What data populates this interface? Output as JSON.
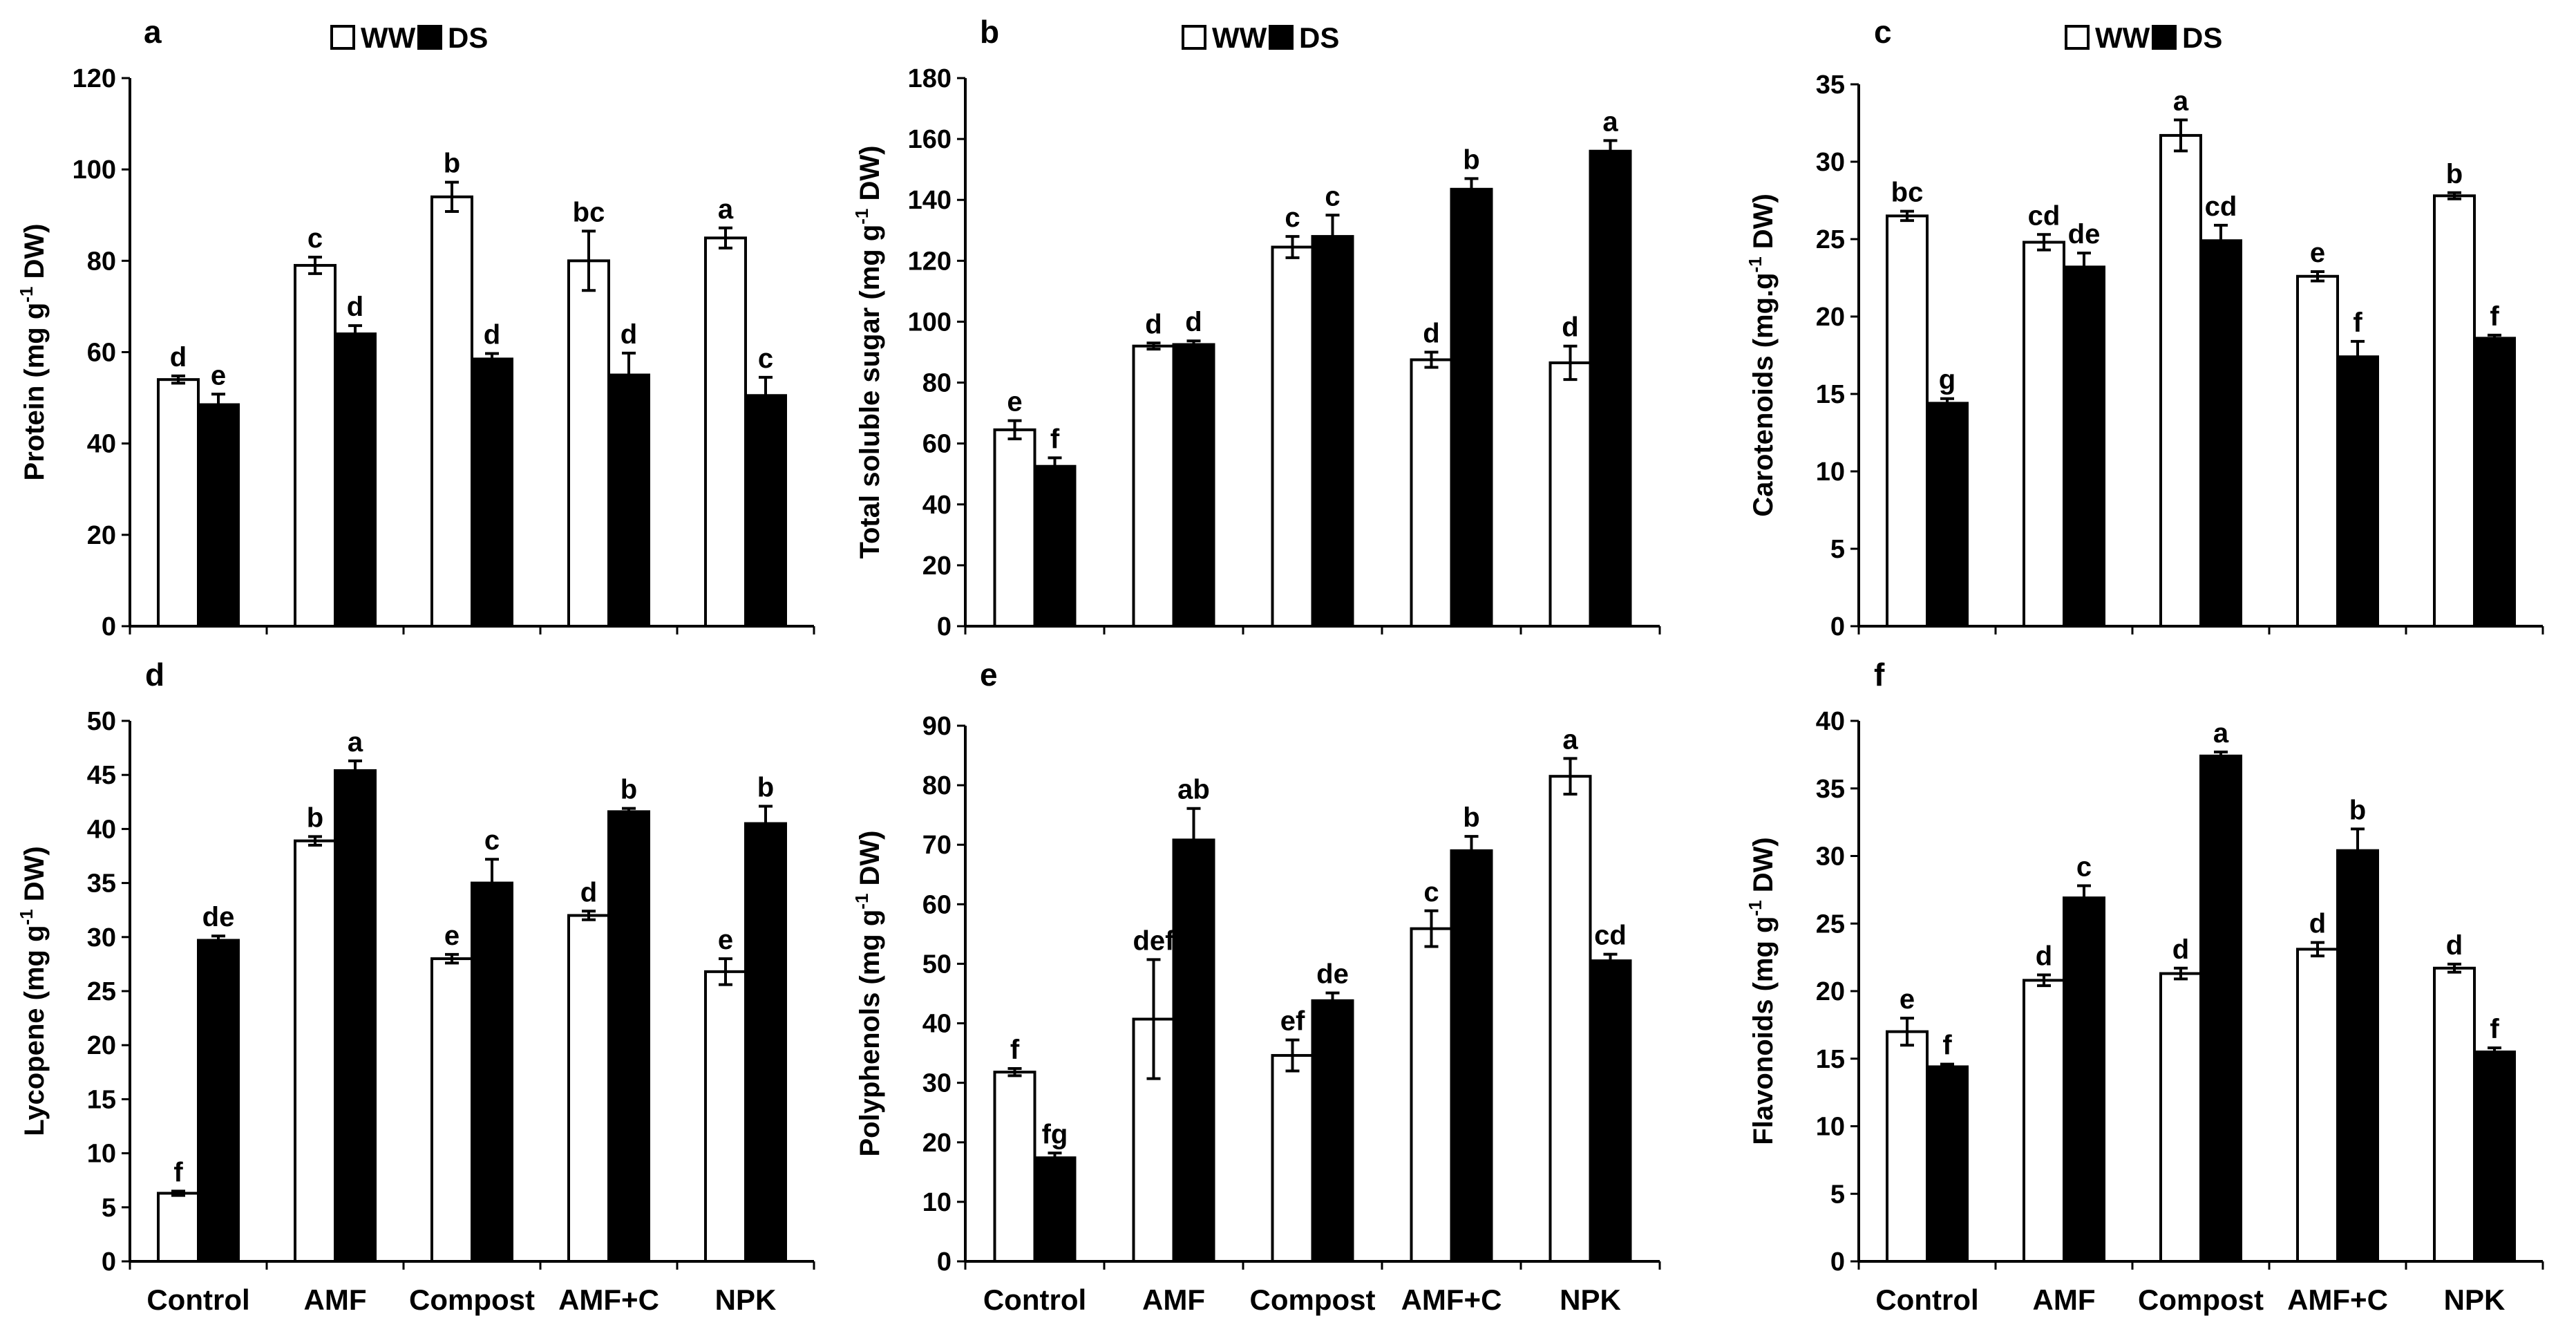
{
  "figure": {
    "layout": "2 rows x 3 columns of grouped bar charts"
  },
  "chart_data": [
    {
      "panel": "a",
      "type": "bar",
      "categories": [
        "Control",
        "AMF",
        "Compost",
        "AMF+C",
        "NPK"
      ],
      "legend": [
        "WW",
        "DS"
      ],
      "ylabel": {
        "main": "Protein (mg g",
        "sup": "-1",
        "tail": " DW)"
      },
      "ylim": [
        0,
        120
      ],
      "ytick_step": 20,
      "series": [
        {
          "name": "WW",
          "color": "#ffffff",
          "values": [
            54,
            79,
            94,
            80,
            85
          ],
          "errors": [
            0.8,
            1.8,
            3.2,
            6.5,
            2.2
          ],
          "letters": [
            "d",
            "c",
            "b",
            "bc",
            "a"
          ]
        },
        {
          "name": "DS",
          "color": "#000000",
          "values": [
            48.5,
            64,
            58.5,
            55,
            50.5
          ],
          "errors": [
            2.3,
            1.8,
            1.2,
            4.8,
            4.0
          ],
          "letters": [
            "e",
            "d",
            "d",
            "d",
            "c"
          ]
        }
      ],
      "x_labels_shown": false
    },
    {
      "panel": "b",
      "type": "bar",
      "categories": [
        "Control",
        "AMF",
        "Compost",
        "AMF+C",
        "NPK"
      ],
      "legend": [
        "WW",
        "DS"
      ],
      "ylabel": {
        "main": "Total soluble sugar  (mg g",
        "sup": "-1",
        "tail": " DW)"
      },
      "ylim": [
        0,
        180
      ],
      "ytick_step": 20,
      "series": [
        {
          "name": "WW",
          "color": "#ffffff",
          "values": [
            64.5,
            92,
            124.5,
            87.5,
            86.5
          ],
          "errors": [
            3.0,
            1.0,
            3.5,
            2.5,
            5.5
          ],
          "letters": [
            "e",
            "d",
            "c",
            "d",
            "d"
          ]
        },
        {
          "name": "DS",
          "color": "#000000",
          "values": [
            52.5,
            92.5,
            128,
            143.5,
            156
          ],
          "errors": [
            2.8,
            1.2,
            7.0,
            3.5,
            3.5
          ],
          "letters": [
            "f",
            "d",
            "c",
            "b",
            "a"
          ]
        }
      ],
      "x_labels_shown": false
    },
    {
      "panel": "c",
      "type": "bar",
      "categories": [
        "Control",
        "AMF",
        "Compost",
        "AMF+C",
        "NPK"
      ],
      "legend": [
        "WW",
        "DS"
      ],
      "ylabel": {
        "main": "Carotenoids (mg.g",
        "sup": "-1",
        "tail": " DW)"
      },
      "ylim": [
        0,
        35
      ],
      "ytick_step": 5,
      "series": [
        {
          "name": "WW",
          "color": "#ffffff",
          "values": [
            26.5,
            24.8,
            31.7,
            22.6,
            27.8
          ],
          "errors": [
            0.3,
            0.5,
            1.0,
            0.3,
            0.2
          ],
          "letters": [
            "bc",
            "cd",
            "a",
            "e",
            "b"
          ]
        },
        {
          "name": "DS",
          "color": "#000000",
          "values": [
            14.4,
            23.2,
            24.9,
            17.4,
            18.6
          ],
          "errors": [
            0.3,
            0.9,
            1.0,
            1.0,
            0.2
          ],
          "letters": [
            "g",
            "de",
            "cd",
            "f",
            "f"
          ]
        }
      ],
      "x_labels_shown": false
    },
    {
      "panel": "d",
      "type": "bar",
      "categories": [
        "Control",
        "AMF",
        "Compost",
        "AMF+C",
        "NPK"
      ],
      "legend": [],
      "ylabel": {
        "main": "Lycopene (mg g",
        "sup": "-1",
        "tail": " DW)"
      },
      "ylim": [
        0,
        50
      ],
      "ytick_step": 5,
      "series": [
        {
          "name": "WW",
          "color": "#ffffff",
          "values": [
            6.3,
            38.9,
            28,
            32,
            26.8
          ],
          "errors": [
            0.2,
            0.4,
            0.4,
            0.4,
            1.2
          ],
          "letters": [
            "f",
            "b",
            "e",
            "d",
            "e"
          ]
        },
        {
          "name": "DS",
          "color": "#000000",
          "values": [
            29.7,
            45.4,
            35,
            41.6,
            40.5
          ],
          "errors": [
            0.4,
            0.9,
            2.2,
            0.3,
            1.6
          ],
          "letters": [
            "de",
            "a",
            "c",
            "b",
            "b"
          ]
        }
      ],
      "x_labels_shown": true
    },
    {
      "panel": "e",
      "type": "bar",
      "categories": [
        "Control",
        "AMF",
        "Compost",
        "AMF+C",
        "NPK"
      ],
      "legend": [],
      "ylabel": {
        "main": "Polyphenols (mg g",
        "sup": "-1",
        "tail": " DW)"
      },
      "ylim": [
        0,
        90
      ],
      "ytick_step": 10,
      "series": [
        {
          "name": "WW",
          "color": "#ffffff",
          "values": [
            31.8,
            40.7,
            34.6,
            55.9,
            81.5
          ],
          "errors": [
            0.6,
            10.0,
            2.6,
            3.0,
            3.0
          ],
          "letters": [
            "f",
            "def",
            "ef",
            "c",
            "a"
          ]
        },
        {
          "name": "DS",
          "color": "#000000",
          "values": [
            17.4,
            70.8,
            43.8,
            69,
            50.5
          ],
          "errors": [
            0.8,
            5.3,
            1.3,
            2.4,
            1.1
          ],
          "letters": [
            "fg",
            "ab",
            "de",
            "b",
            "cd"
          ]
        }
      ],
      "x_labels_shown": true
    },
    {
      "panel": "f",
      "type": "bar",
      "categories": [
        "Control",
        "AMF",
        "Compost",
        "AMF+C",
        "NPK"
      ],
      "legend": [],
      "ylabel": {
        "main": "Flavonoids (mg g",
        "sup": "-1",
        "tail": " DW)"
      },
      "ylim": [
        0,
        40
      ],
      "ytick_step": 5,
      "series": [
        {
          "name": "WW",
          "color": "#ffffff",
          "values": [
            17,
            20.8,
            21.3,
            23.1,
            21.7
          ],
          "errors": [
            1.0,
            0.4,
            0.4,
            0.5,
            0.3
          ],
          "letters": [
            "e",
            "d",
            "d",
            "d",
            "d"
          ]
        },
        {
          "name": "DS",
          "color": "#000000",
          "values": [
            14.4,
            26.9,
            37.4,
            30.4,
            15.5
          ],
          "errors": [
            0.2,
            0.9,
            0.3,
            1.6,
            0.3
          ],
          "letters": [
            "f",
            "c",
            "a",
            "b",
            "f"
          ]
        }
      ],
      "x_labels_shown": true
    }
  ]
}
